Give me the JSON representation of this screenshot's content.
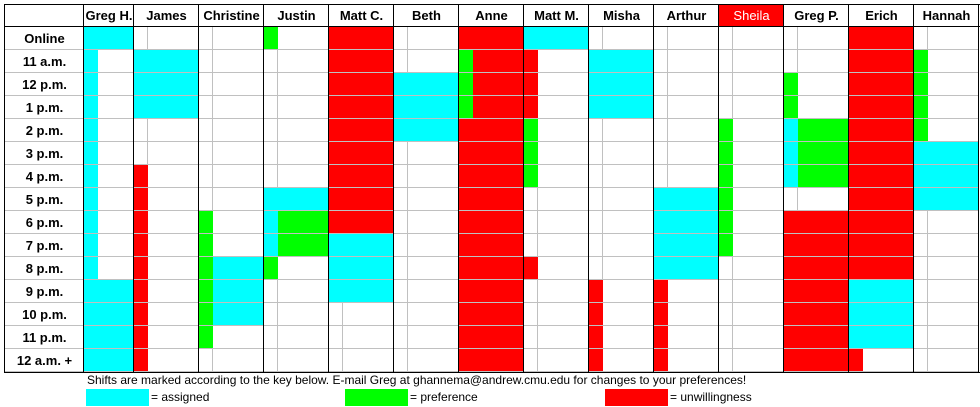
{
  "colors": {
    "assigned": "#00ffff",
    "preference": "#00ff00",
    "unwillingness": "#ff0000",
    "highlight_header": "#ff0000",
    "highlight_header_text": "#ffffff"
  },
  "schedule": {
    "columns": [
      {
        "name": "Greg H.",
        "highlighted": false
      },
      {
        "name": "James",
        "highlighted": false
      },
      {
        "name": "Christine",
        "highlighted": false
      },
      {
        "name": "Justin",
        "highlighted": false
      },
      {
        "name": "Matt C.",
        "highlighted": false
      },
      {
        "name": "Beth",
        "highlighted": false
      },
      {
        "name": "Anne",
        "highlighted": false
      },
      {
        "name": "Matt M.",
        "highlighted": false
      },
      {
        "name": "Misha",
        "highlighted": false
      },
      {
        "name": "Arthur",
        "highlighted": false
      },
      {
        "name": "Sheila",
        "highlighted": true
      },
      {
        "name": "Greg P.",
        "highlighted": false
      },
      {
        "name": "Erich",
        "highlighted": false
      },
      {
        "name": "Hannah",
        "highlighted": false
      }
    ],
    "rows": [
      "Online",
      "11 a.m.",
      "12 p.m.",
      "1 p.m.",
      "2 p.m.",
      "3 p.m.",
      "4 p.m.",
      "5 p.m.",
      "6 p.m.",
      "7 p.m.",
      "8 p.m.",
      "9 p.m.",
      "10 p.m.",
      "11 p.m.",
      "12 a.m. +"
    ],
    "cells": [
      [
        "CC",
        "",
        "",
        "G",
        "RR",
        "",
        "RR",
        "CC",
        "",
        "",
        "",
        "",
        "RR",
        ""
      ],
      [
        "C",
        "CC",
        "",
        "",
        "RR",
        "",
        "GR",
        "R",
        "CC",
        "",
        "",
        "",
        "RR",
        "G"
      ],
      [
        "C",
        "CC",
        "",
        "",
        "RR",
        "CC",
        "GR",
        "R",
        "CC",
        "",
        "",
        "G",
        "RR",
        "G"
      ],
      [
        "C",
        "CC",
        "",
        "",
        "RR",
        "CC",
        "GR",
        "R",
        "CC",
        "",
        "",
        "G",
        "RR",
        "G"
      ],
      [
        "C",
        "",
        "",
        "",
        "RR",
        "CC",
        "RR",
        "G",
        "",
        "",
        "G",
        "CG",
        "RR",
        "G"
      ],
      [
        "C",
        "",
        "",
        "",
        "RR",
        "",
        "RR",
        "G",
        "",
        "",
        "G",
        "CG",
        "RR",
        "CC"
      ],
      [
        "C",
        "R",
        "",
        "",
        "RR",
        "",
        "RR",
        "G",
        "",
        "",
        "G",
        "CG",
        "RR",
        "CC"
      ],
      [
        "C",
        "R",
        "",
        "CC",
        "RR",
        "",
        "RR",
        "",
        "",
        "CC",
        "G",
        "",
        "RR",
        "CC"
      ],
      [
        "C",
        "R",
        "G",
        "CG",
        "RR",
        "",
        "RR",
        "",
        "",
        "CC",
        "G",
        "RR",
        "RR",
        ""
      ],
      [
        "C",
        "R",
        "G",
        "CG",
        "CC",
        "",
        "RR",
        "",
        "",
        "CC",
        "G",
        "RR",
        "RR",
        ""
      ],
      [
        "C",
        "R",
        "GC",
        "G",
        "CC",
        "",
        "RR",
        "R",
        "",
        "CC",
        "",
        "RR",
        "RR",
        ""
      ],
      [
        "CC",
        "R",
        "GC",
        "",
        "CC",
        "",
        "RR",
        "",
        "R",
        "R",
        "",
        "RR",
        "CC",
        ""
      ],
      [
        "CC",
        "R",
        "GC",
        "",
        "",
        "",
        "RR",
        "",
        "R",
        "R",
        "",
        "RR",
        "CC",
        ""
      ],
      [
        "CC",
        "R",
        "G",
        "",
        "",
        "",
        "RR",
        "",
        "R",
        "R",
        "",
        "RR",
        "CC",
        ""
      ],
      [
        "CC",
        "R",
        "",
        "",
        "",
        "",
        "RR",
        "",
        "R",
        "R",
        "",
        "RR",
        "R",
        ""
      ]
    ]
  },
  "footer": {
    "note": "Shifts are marked according to the key below.  E-mail Greg at ghannema@andrew.cmu.edu for changes to your preferences!",
    "legend": [
      {
        "label": "= assigned",
        "color_key": "assigned"
      },
      {
        "label": "= preference",
        "color_key": "preference"
      },
      {
        "label": "= unwillingness",
        "color_key": "unwillingness"
      }
    ]
  }
}
